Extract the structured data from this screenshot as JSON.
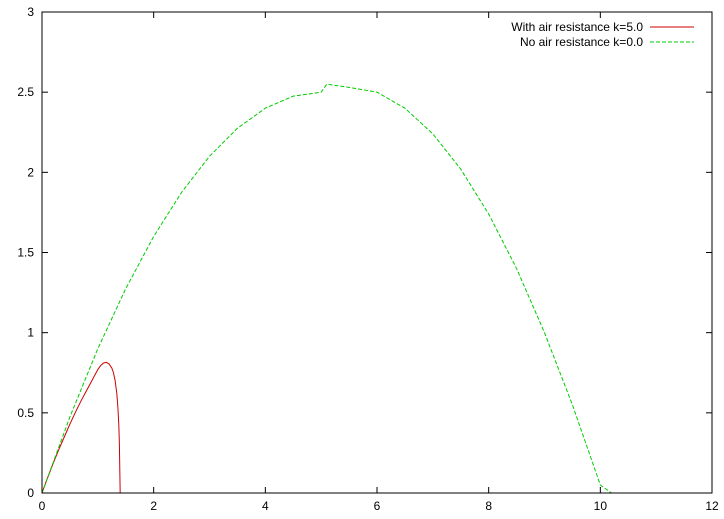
{
  "chart_data": {
    "type": "line",
    "title": "",
    "xlabel": "",
    "ylabel": "",
    "xlim": [
      0,
      12
    ],
    "ylim": [
      0,
      3
    ],
    "xticks": [
      0,
      2,
      4,
      6,
      8,
      10,
      12
    ],
    "yticks": [
      0,
      0.5,
      1,
      1.5,
      2,
      2.5,
      3
    ],
    "xtick_labels": [
      "0",
      "2",
      "4",
      "6",
      "8",
      "10",
      "12"
    ],
    "ytick_labels": [
      "0",
      "0.5",
      "1",
      "1.5",
      "2",
      "2.5",
      "3"
    ],
    "grid": false,
    "legend_position": "top-right",
    "series": [
      {
        "name": "With air resistance k=5.0",
        "color": "#cc0000",
        "dash": "solid",
        "x": [
          0,
          0.1,
          0.2,
          0.3,
          0.4,
          0.5,
          0.6,
          0.7,
          0.8,
          0.9,
          1.0,
          1.05,
          1.1,
          1.15,
          1.2,
          1.25,
          1.28,
          1.31,
          1.34,
          1.36,
          1.375,
          1.385,
          1.39,
          1.395,
          1.4
        ],
        "y": [
          0,
          0.095,
          0.185,
          0.27,
          0.35,
          0.43,
          0.505,
          0.575,
          0.64,
          0.705,
          0.77,
          0.795,
          0.81,
          0.815,
          0.805,
          0.78,
          0.75,
          0.7,
          0.62,
          0.53,
          0.43,
          0.32,
          0.22,
          0.11,
          0
        ]
      },
      {
        "name": "No air resistance k=0.0",
        "color": "#00cc00",
        "dash": "dashed",
        "x": [
          0,
          0.5,
          1.0,
          1.5,
          2.0,
          2.5,
          3.0,
          3.5,
          4.0,
          4.5,
          5.0,
          5.1,
          5.5,
          6.0,
          6.5,
          7.0,
          7.5,
          8.0,
          8.5,
          9.0,
          9.5,
          10.0,
          10.2
        ],
        "y": [
          0,
          0.475,
          0.9,
          1.275,
          1.6,
          1.875,
          2.1,
          2.275,
          2.4,
          2.475,
          2.5,
          2.55,
          2.53,
          2.5,
          2.4,
          2.24,
          2.02,
          1.74,
          1.4,
          1.0,
          0.55,
          0.05,
          0
        ]
      }
    ]
  }
}
